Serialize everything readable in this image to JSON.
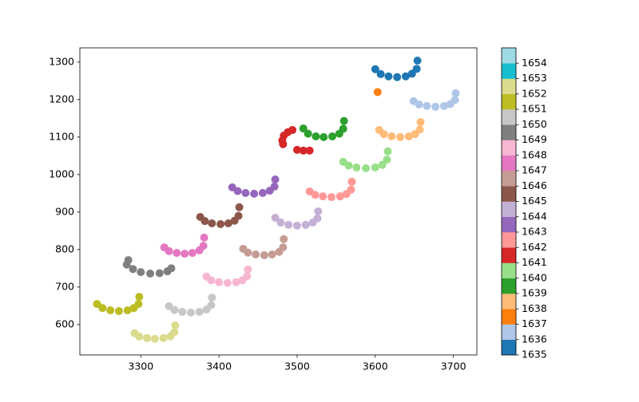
{
  "chart_data": {
    "type": "scatter",
    "xlim": [
      3222,
      3730
    ],
    "ylim": [
      519,
      1338
    ],
    "xticks": [
      3300,
      3400,
      3500,
      3600,
      3700
    ],
    "yticks": [
      600,
      700,
      800,
      900,
      1000,
      1100,
      1200,
      1300
    ],
    "colorbar": {
      "lim": [
        1635,
        1655
      ],
      "ticks": [
        1635,
        1636,
        1637,
        1638,
        1639,
        1640,
        1641,
        1642,
        1643,
        1644,
        1645,
        1646,
        1647,
        1648,
        1649,
        1650,
        1651,
        1652,
        1653,
        1654
      ],
      "colors": [
        "#1f77b4",
        "#aec7e8",
        "#ff7f0e",
        "#ffbb78",
        "#2ca02c",
        "#98df8a",
        "#d62728",
        "#ff9896",
        "#9467bd",
        "#c5b0d5",
        "#8c564b",
        "#c49c94",
        "#e377c2",
        "#f7b6d2",
        "#7f7f7f",
        "#c7c7c7",
        "#bcbd22",
        "#dbdb8d",
        "#17becf",
        "#9edae5"
      ]
    },
    "series": [
      {
        "c": 1635,
        "x": [
          3600,
          3607,
          3617,
          3628,
          3639,
          3647,
          3653,
          3654
        ],
        "y": [
          1281,
          1268,
          1262,
          1260,
          1262,
          1269,
          1282,
          1304
        ]
      },
      {
        "c": 1636,
        "x": [
          3649,
          3656,
          3666,
          3677,
          3688,
          3696,
          3702,
          3703
        ],
        "y": [
          1196,
          1187,
          1183,
          1181,
          1183,
          1188,
          1199,
          1217
        ]
      },
      {
        "c": 1637,
        "x": [
          3603
        ],
        "y": [
          1220
        ]
      },
      {
        "c": 1638,
        "x": [
          3605,
          3611,
          3621,
          3632,
          3643,
          3651,
          3657,
          3658
        ],
        "y": [
          1119,
          1108,
          1102,
          1100,
          1102,
          1108,
          1120,
          1140
        ]
      },
      {
        "c": 1639,
        "x": [
          3508,
          3514,
          3524,
          3534,
          3545,
          3554,
          3559,
          3560
        ],
        "y": [
          1123,
          1109,
          1102,
          1100,
          1102,
          1109,
          1122,
          1143
        ]
      },
      {
        "c": 1640,
        "x": [
          3559,
          3566,
          3576,
          3588,
          3600,
          3609,
          3615,
          3616
        ],
        "y": [
          1034,
          1024,
          1019,
          1017,
          1019,
          1026,
          1040,
          1062
        ]
      },
      {
        "c": 1641,
        "x": [
          3494,
          3488,
          3483,
          3481,
          3482,
          3500,
          3508,
          3516
        ],
        "y": [
          1119,
          1113,
          1104,
          1091,
          1081,
          1066,
          1064,
          1064
        ]
      },
      {
        "c": 1642,
        "x": [
          3516,
          3523,
          3533,
          3544,
          3555,
          3563,
          3569,
          3570
        ],
        "y": [
          955,
          946,
          942,
          940,
          942,
          948,
          960,
          981
        ]
      },
      {
        "c": 1643,
        "x": [
          3417,
          3424,
          3434,
          3445,
          3456,
          3465,
          3471,
          3472
        ],
        "y": [
          966,
          956,
          951,
          949,
          951,
          957,
          968,
          987
        ]
      },
      {
        "c": 1644,
        "x": [
          3472,
          3479,
          3489,
          3500,
          3511,
          3520,
          3526,
          3527
        ],
        "y": [
          885,
          872,
          866,
          864,
          866,
          872,
          883,
          902
        ]
      },
      {
        "c": 1645,
        "x": [
          3376,
          3382,
          3391,
          3402,
          3412,
          3420,
          3425,
          3426
        ],
        "y": [
          887,
          876,
          870,
          868,
          870,
          877,
          890,
          913
        ]
      },
      {
        "c": 1646,
        "x": [
          3431,
          3437,
          3447,
          3458,
          3468,
          3477,
          3482,
          3483
        ],
        "y": [
          802,
          792,
          787,
          785,
          787,
          794,
          806,
          828
        ]
      },
      {
        "c": 1647,
        "x": [
          3330,
          3336,
          3346,
          3356,
          3366,
          3375,
          3380,
          3381
        ],
        "y": [
          806,
          796,
          791,
          789,
          791,
          798,
          810,
          832
        ]
      },
      {
        "c": 1648,
        "x": [
          3384,
          3390,
          3400,
          3411,
          3422,
          3430,
          3436,
          3437
        ],
        "y": [
          728,
          718,
          713,
          711,
          713,
          718,
          729,
          747
        ]
      },
      {
        "c": 1649,
        "x": [
          3284,
          3282,
          3290,
          3300,
          3312,
          3324,
          3334,
          3339
        ],
        "y": [
          772,
          760,
          748,
          740,
          736,
          737,
          742,
          750
        ]
      },
      {
        "c": 1650,
        "x": [
          3336,
          3343,
          3353,
          3364,
          3375,
          3384,
          3390,
          3391
        ],
        "y": [
          649,
          639,
          634,
          632,
          634,
          640,
          652,
          672
        ]
      },
      {
        "c": 1651,
        "x": [
          3244,
          3251,
          3261,
          3272,
          3283,
          3291,
          3297,
          3298
        ],
        "y": [
          655,
          644,
          638,
          636,
          638,
          644,
          655,
          674
        ]
      },
      {
        "c": 1652,
        "x": [
          3292,
          3298,
          3308,
          3318,
          3329,
          3338,
          3343,
          3344
        ],
        "y": [
          577,
          568,
          564,
          562,
          564,
          569,
          580,
          598
        ]
      }
    ]
  }
}
